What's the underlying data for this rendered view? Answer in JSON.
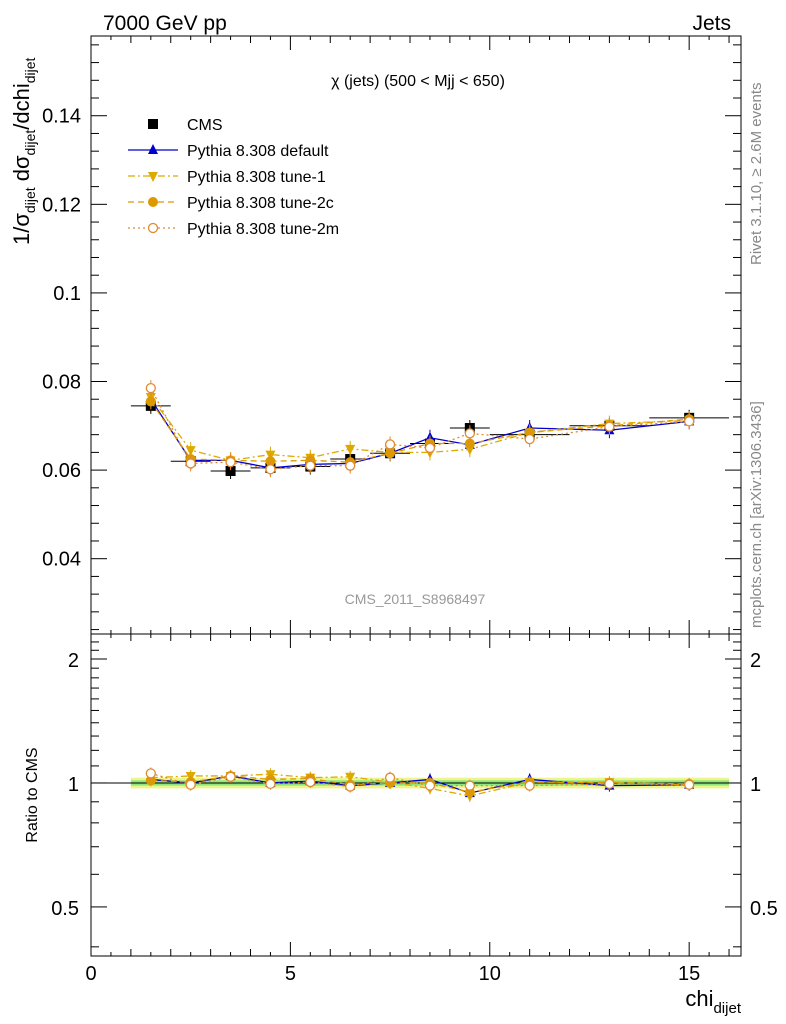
{
  "header": {
    "left": "7000 GeV pp",
    "right": "Jets"
  },
  "side_labels": {
    "rivet": "Rivet 3.1.10, ≥ 2.6M events",
    "mcplots": "mcplots.cern.ch [arXiv:1306.3436]"
  },
  "main_plot": {
    "title": "χ (jets) (500 < Mjj <  650)",
    "ylabel": "1/σdijet dσdijet/dchidijet",
    "watermark": "CMS_2011_S8968497"
  },
  "ratio_plot": {
    "ylabel": "Ratio to CMS"
  },
  "xlabel": "chidijet",
  "legend": [
    {
      "label": "CMS",
      "color": "#000000",
      "marker": "square"
    },
    {
      "label": "Pythia 8.308 default",
      "color": "#0000cc",
      "marker": "triangle-up"
    },
    {
      "label": "Pythia 8.308 tune-1",
      "color": "#ddaa00",
      "marker": "triangle-down"
    },
    {
      "label": "Pythia 8.308 tune-2c",
      "color": "#dd9900",
      "marker": "circle"
    },
    {
      "label": "Pythia 8.308 tune-2m",
      "color": "#e08a30",
      "marker": "circle-open"
    }
  ],
  "chart_data": [
    {
      "type": "line",
      "title": "χ (jets) (500 < Mjj <  650)",
      "xlabel": "chidijet",
      "ylabel": "1/σdijet dσdijet/dchidijet",
      "xlim": [
        0,
        16.3
      ],
      "ylim": [
        0.023,
        0.158
      ],
      "x_ticks": [
        0,
        5,
        10,
        15
      ],
      "y_ticks": [
        0.04,
        0.06,
        0.08,
        0.1,
        0.12,
        0.14
      ],
      "legend_position": "top-left",
      "x": [
        1.5,
        2.5,
        3.5,
        4.5,
        5.5,
        6.5,
        7.5,
        8.5,
        9.5,
        11,
        13,
        15
      ],
      "x_err": [
        0.5,
        0.5,
        0.5,
        0.5,
        0.5,
        0.5,
        0.5,
        0.5,
        0.5,
        1,
        1,
        1
      ],
      "series": [
        {
          "name": "CMS",
          "color": "#000000",
          "marker": "square",
          "values": [
            0.0745,
            0.062,
            0.0598,
            0.0605,
            0.0608,
            0.0625,
            0.0638,
            0.066,
            0.0695,
            0.068,
            0.07,
            0.0718
          ]
        },
        {
          "name": "Pythia 8.308 default",
          "color": "#0000cc",
          "marker": "triangle-up",
          "values": [
            0.076,
            0.0622,
            0.0622,
            0.0605,
            0.0613,
            0.0615,
            0.0638,
            0.0673,
            0.0657,
            0.0695,
            0.069,
            0.071
          ]
        },
        {
          "name": "Pythia 8.308 tune-1",
          "color": "#ddaa00",
          "marker": "triangle-down",
          "values": [
            0.0765,
            0.0645,
            0.0622,
            0.0635,
            0.0628,
            0.0648,
            0.064,
            0.064,
            0.0647,
            0.0685,
            0.0705,
            0.0712
          ]
        },
        {
          "name": "Pythia 8.308 tune-2c",
          "color": "#dd9900",
          "marker": "circle",
          "values": [
            0.0755,
            0.0625,
            0.0622,
            0.062,
            0.0622,
            0.0618,
            0.0638,
            0.066,
            0.066,
            0.0685,
            0.07,
            0.0715
          ]
        },
        {
          "name": "Pythia 8.308 tune-2m",
          "color": "#e08a30",
          "marker": "circle-open",
          "values": [
            0.0785,
            0.0615,
            0.0618,
            0.0602,
            0.061,
            0.061,
            0.0658,
            0.065,
            0.0683,
            0.067,
            0.0698,
            0.071
          ]
        }
      ]
    },
    {
      "type": "line",
      "xlabel": "chidijet",
      "ylabel": "Ratio to CMS",
      "xlim": [
        0,
        16.3
      ],
      "ylim": [
        0.38,
        2.3
      ],
      "y_scale": "log",
      "y_ticks": [
        0.5,
        1,
        2
      ],
      "band_inner": [
        0.985,
        1.015
      ],
      "band_outer": [
        0.97,
        1.03
      ],
      "x": [
        1.5,
        2.5,
        3.5,
        4.5,
        5.5,
        6.5,
        7.5,
        8.5,
        9.5,
        11,
        13,
        15
      ],
      "series": [
        {
          "name": "Pythia 8.308 default",
          "color": "#0000cc",
          "marker": "triangle-up",
          "values": [
            1.02,
            1.0,
            1.04,
            1.0,
            1.01,
            0.985,
            1.0,
            1.02,
            0.945,
            1.02,
            0.985,
            0.99
          ]
        },
        {
          "name": "Pythia 8.308 tune-1",
          "color": "#ddaa00",
          "marker": "triangle-down",
          "values": [
            1.03,
            1.04,
            1.04,
            1.05,
            1.03,
            1.035,
            1.005,
            0.97,
            0.93,
            1.005,
            1.005,
            0.99
          ]
        },
        {
          "name": "Pythia 8.308 tune-2c",
          "color": "#dd9900",
          "marker": "circle",
          "values": [
            1.015,
            1.005,
            1.04,
            1.02,
            1.025,
            0.99,
            1.0,
            1.0,
            0.95,
            1.005,
            1.0,
            0.995
          ]
        },
        {
          "name": "Pythia 8.308 tune-2m",
          "color": "#e08a30",
          "marker": "circle-open",
          "values": [
            1.055,
            0.99,
            1.035,
            0.995,
            1.005,
            0.98,
            1.03,
            0.985,
            0.985,
            0.985,
            0.995,
            0.99
          ]
        }
      ]
    }
  ]
}
